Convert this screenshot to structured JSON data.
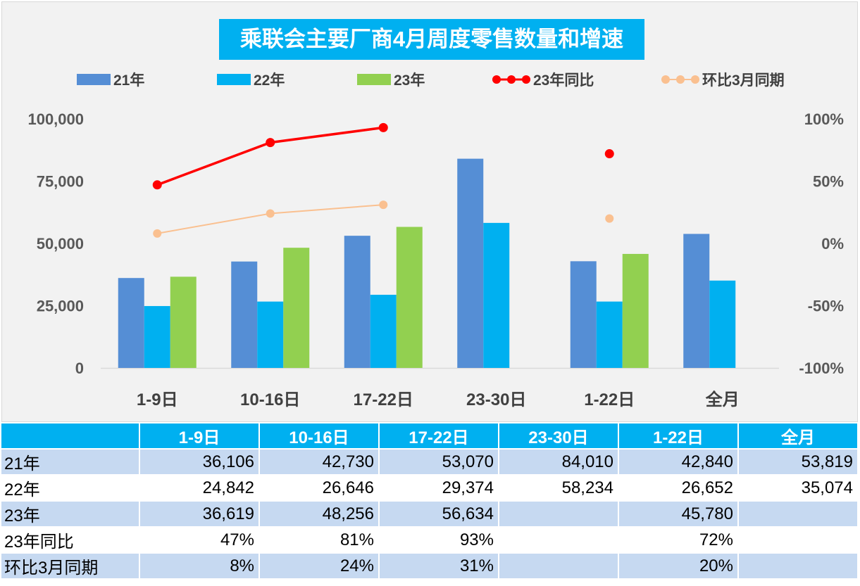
{
  "chart_data": {
    "type": "bar",
    "title": "乘联会主要厂商4月周度零售数量和增速",
    "categories": [
      "1-9日",
      "10-16日",
      "17-22日",
      "23-30日",
      "1-22日",
      "全月"
    ],
    "y_left": {
      "ticks": [
        "100,000",
        "75,000",
        "50,000",
        "25,000",
        "0"
      ],
      "range": [
        0,
        100000
      ]
    },
    "y_right": {
      "ticks": [
        "100%",
        "50%",
        "0%",
        "-50%",
        "-100%"
      ],
      "range": [
        -100,
        100
      ]
    },
    "series": [
      {
        "name": "21年",
        "kind": "bar",
        "color": "#558ed5",
        "values": [
          36106,
          42730,
          53070,
          84010,
          42840,
          53819
        ]
      },
      {
        "name": "22年",
        "kind": "bar",
        "color": "#00b0f0",
        "values": [
          24842,
          26646,
          29374,
          58234,
          26652,
          35074
        ]
      },
      {
        "name": "23年",
        "kind": "bar",
        "color": "#92d050",
        "values": [
          36619,
          48256,
          56634,
          null,
          45780,
          null
        ]
      },
      {
        "name": "23年同比",
        "kind": "line",
        "axis": "right",
        "color": "#ff0000",
        "values": [
          47,
          81,
          93,
          null,
          72,
          null
        ]
      },
      {
        "name": "环比3月同期",
        "kind": "line",
        "axis": "right",
        "color": "#fac090",
        "values": [
          8,
          24,
          31,
          null,
          20,
          null
        ]
      }
    ],
    "legend_position": "top",
    "grid": false
  },
  "table": {
    "headers": [
      "",
      "1-9日",
      "10-16日",
      "17-22日",
      "23-30日",
      "1-22日",
      "全月"
    ],
    "rows": [
      {
        "label": "21年",
        "cells": [
          "36,106",
          "42,730",
          "53,070",
          "84,010",
          "42,840",
          "53,819"
        ]
      },
      {
        "label": "22年",
        "cells": [
          "24,842",
          "26,646",
          "29,374",
          "58,234",
          "26,652",
          "35,074"
        ]
      },
      {
        "label": "23年",
        "cells": [
          "36,619",
          "48,256",
          "56,634",
          "",
          "45,780",
          ""
        ]
      },
      {
        "label": "23年同比",
        "cells": [
          "47%",
          "81%",
          "93%",
          "",
          "72%",
          ""
        ]
      },
      {
        "label": "环比3月同期",
        "cells": [
          "8%",
          "24%",
          "31%",
          "",
          "20%",
          ""
        ]
      }
    ]
  }
}
